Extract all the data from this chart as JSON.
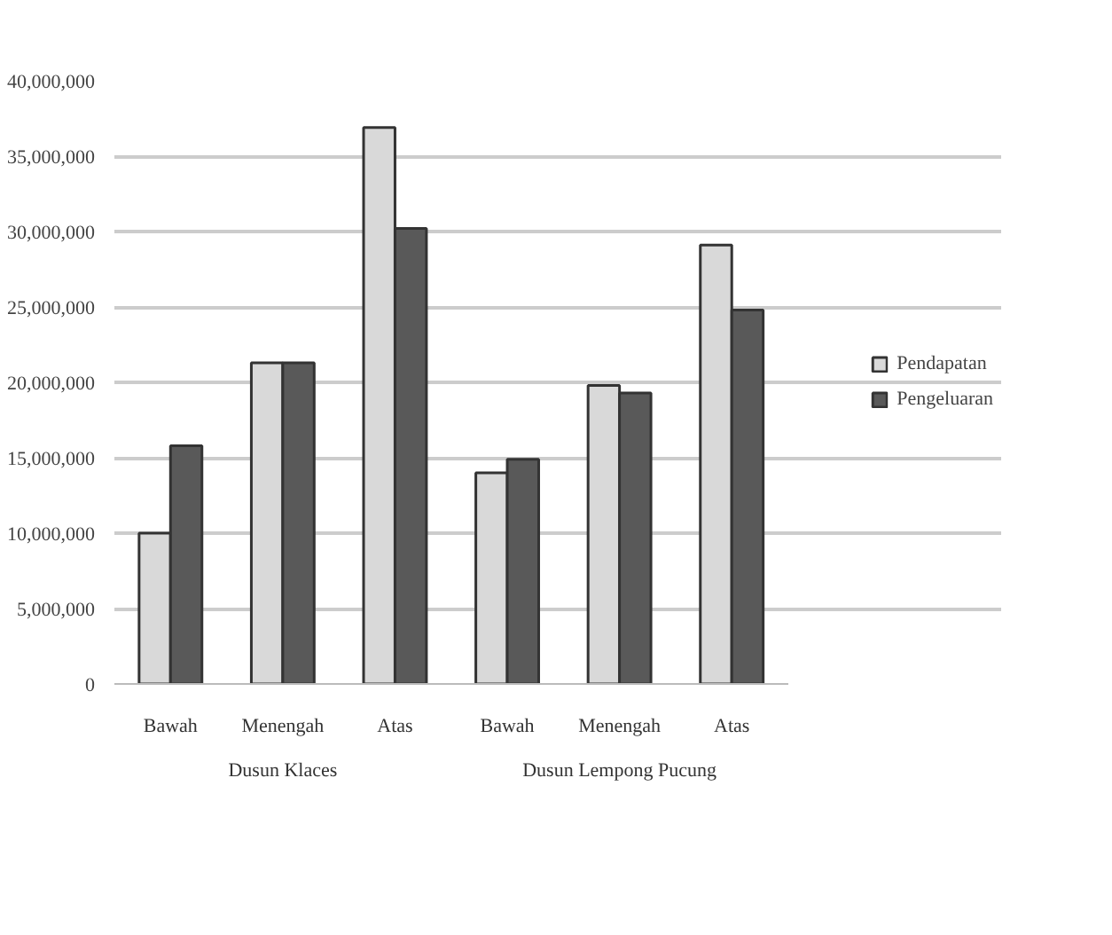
{
  "chart_data": {
    "type": "bar",
    "categories": [
      "Bawah",
      "Menengah",
      "Atas",
      "Bawah",
      "Menengah",
      "Atas"
    ],
    "annotations": [
      "Dusun Klaces",
      "Dusun Lempong Pucung"
    ],
    "series": [
      {
        "name": "Pendapatan",
        "color": "#d9d9d9",
        "values": [
          10000000,
          21300000,
          36900000,
          14000000,
          19800000,
          29100000
        ]
      },
      {
        "name": "Pengeluaran",
        "color": "#595959",
        "values": [
          15800000,
          21300000,
          30200000,
          14900000,
          19300000,
          24800000
        ]
      }
    ],
    "ylim": [
      0,
      40000000
    ],
    "yticks": [
      {
        "value": 0,
        "label": "0"
      },
      {
        "value": 5000000,
        "label": "5,000,000"
      },
      {
        "value": 10000000,
        "label": "10,000,000"
      },
      {
        "value": 15000000,
        "label": "15,000,000"
      },
      {
        "value": 20000000,
        "label": "20,000,000"
      },
      {
        "value": 25000000,
        "label": "25,000,000"
      },
      {
        "value": 30000000,
        "label": "30,000,000"
      },
      {
        "value": 35000000,
        "label": "35,000,000"
      },
      {
        "value": 40000000,
        "label": "40,000,000"
      }
    ],
    "grid": "y",
    "legend": "right"
  }
}
